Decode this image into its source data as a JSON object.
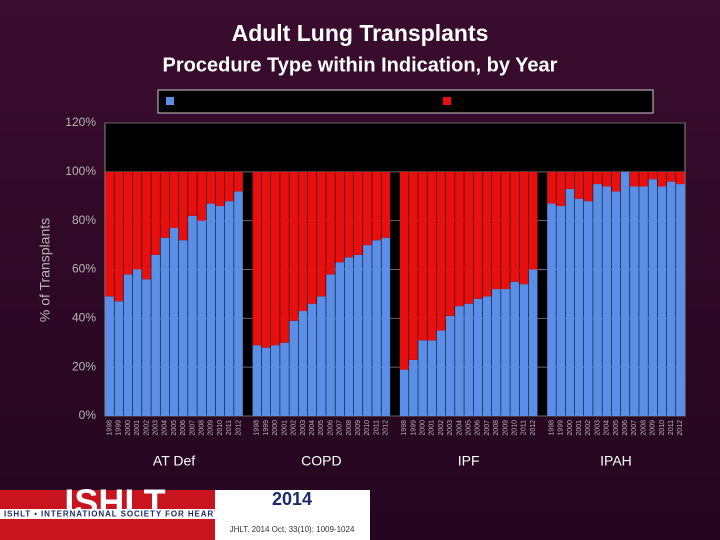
{
  "chart_data": {
    "type": "bar",
    "stacked": true,
    "title": "Adult Lung Transplants",
    "subtitle": "Procedure Type within Indication, by Year",
    "y_label": "% of Transplants",
    "ylim": [
      0,
      120
    ],
    "yticks": [
      {
        "value": 0,
        "label": "0%"
      },
      {
        "value": 20,
        "label": "20%"
      },
      {
        "value": 40,
        "label": "40%"
      },
      {
        "value": 60,
        "label": "60%"
      },
      {
        "value": 80,
        "label": "80%"
      },
      {
        "value": 100,
        "label": "100%"
      },
      {
        "value": 120,
        "label": "120%"
      }
    ],
    "grid": true,
    "legend": "top",
    "groups": [
      {
        "label": "AT Def",
        "categories": [
          "1998",
          "1999",
          "2000",
          "2001",
          "2002",
          "2003",
          "2004",
          "2005",
          "2006",
          "2007",
          "2008",
          "2009",
          "2010",
          "2011",
          "2012"
        ],
        "series": [
          {
            "color": "#5b8ee6",
            "values": [
              49,
              47,
              58,
              60,
              56,
              66,
              73,
              77,
              72,
              82,
              80,
              87,
              86,
              88,
              92
            ]
          },
          {
            "color": "#e8100e",
            "values": [
              51,
              53,
              42,
              40,
              44,
              34,
              27,
              23,
              28,
              18,
              20,
              13,
              14,
              12,
              8
            ]
          }
        ]
      },
      {
        "label": "COPD",
        "categories": [
          "1998",
          "1999",
          "2000",
          "2001",
          "2002",
          "2003",
          "2004",
          "2005",
          "2006",
          "2007",
          "2008",
          "2009",
          "2010",
          "2011",
          "2012"
        ],
        "series": [
          {
            "color": "#5b8ee6",
            "values": [
              29,
              28,
              29,
              30,
              39,
              43,
              46,
              49,
              58,
              63,
              65,
              66,
              70,
              72,
              73
            ]
          },
          {
            "color": "#e8100e",
            "values": [
              71,
              72,
              71,
              70,
              61,
              57,
              54,
              51,
              42,
              37,
              35,
              34,
              30,
              28,
              27
            ]
          }
        ]
      },
      {
        "label": "IPF",
        "categories": [
          "1998",
          "1999",
          "2000",
          "2001",
          "2002",
          "2003",
          "2004",
          "2005",
          "2006",
          "2007",
          "2008",
          "2009",
          "2010",
          "2011",
          "2012"
        ],
        "series": [
          {
            "color": "#5b8ee6",
            "values": [
              19,
              23,
              31,
              31,
              35,
              41,
              45,
              46,
              48,
              49,
              52,
              52,
              55,
              54,
              60
            ]
          },
          {
            "color": "#e8100e",
            "values": [
              81,
              77,
              69,
              69,
              65,
              59,
              55,
              54,
              52,
              51,
              48,
              48,
              45,
              46,
              40
            ]
          }
        ]
      },
      {
        "label": "IPAH",
        "categories": [
          "1998",
          "1999",
          "2000",
          "2001",
          "2002",
          "2003",
          "2004",
          "2005",
          "2006",
          "2007",
          "2008",
          "2009",
          "2010",
          "2011",
          "2012"
        ],
        "series": [
          {
            "color": "#5b8ee6",
            "values": [
              87,
              86,
              93,
              89,
              88,
              95,
              94,
              92,
              100,
              94,
              94,
              97,
              94,
              96,
              95
            ]
          },
          {
            "color": "#e8100e",
            "values": [
              13,
              14,
              7,
              11,
              12,
              5,
              6,
              8,
              0,
              6,
              6,
              3,
              6,
              4,
              5
            ]
          }
        ]
      }
    ]
  },
  "footer": {
    "logo": "ISHLT",
    "society": "ISHLT • INTERNATIONAL SOCIETY FOR HEART AND LUNG TRANSPLANTATION",
    "year": "2014",
    "citation": "JHLT. 2014 Oct; 33(10): 1009-1024"
  }
}
